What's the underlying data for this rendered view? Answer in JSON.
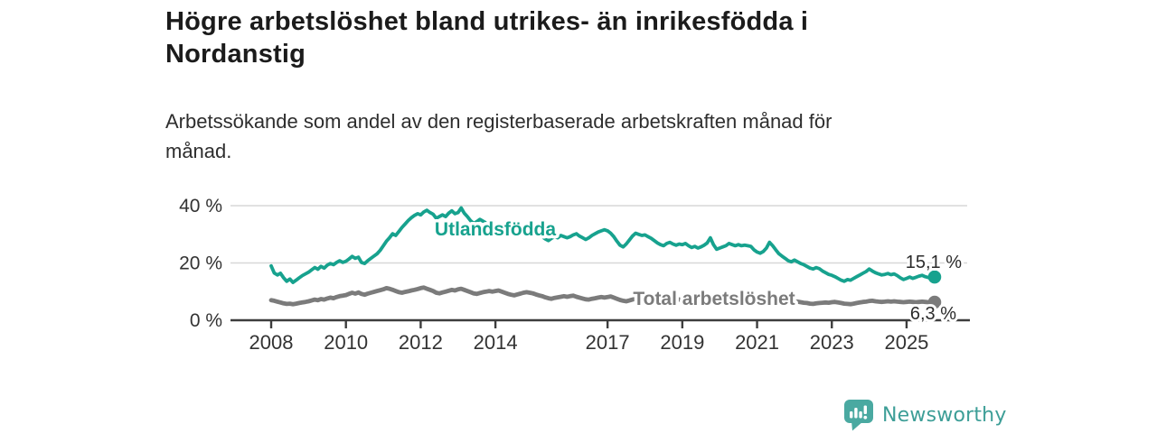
{
  "header": {
    "title": "Högre arbetslöshet bland utrikes- än inrikesfödda i\nNordanstig",
    "subtitle": "Arbetssökande som andel av den registerbaserade arbetskraften månad för\nmånad."
  },
  "footer": {
    "brand": "Newsworthy"
  },
  "colors": {
    "accent_teal": "#17a28e",
    "series_gray": "#7b7b7b",
    "axis": "#3d3d3d",
    "gridline": "#d7d7d7",
    "tick_text": "#333333",
    "value_label_text": "#2b2b2b",
    "logo_teal": "#4aa9a1",
    "logo_text_teal": "#3d9e97"
  },
  "chart_data": {
    "type": "line",
    "title": "Högre arbetslöshet bland utrikes- än inrikesfödda i Nordanstig",
    "subtitle": "Arbetssökande som andel av den registerbaserade arbetskraften månad för månad.",
    "x_unit": "month",
    "x_start_year": 2008,
    "x_interval_months": 1,
    "y_unit": "%",
    "ylim": [
      0,
      42
    ],
    "y_ticks": [
      0,
      20,
      40
    ],
    "y_tick_suffix": " %",
    "x_ticks": [
      2008,
      2010,
      2012,
      2014,
      2017,
      2019,
      2021,
      2023,
      2025
    ],
    "grid": "horizontal",
    "legend_position": "inline-labels",
    "series": [
      {
        "name": "Utlandsfödda",
        "color": "#17a28e",
        "end_label": "15,1 %",
        "end_value": 15.1,
        "values": [
          19.0,
          16.5,
          15.8,
          16.4,
          14.8,
          13.6,
          14.4,
          13.2,
          14.0,
          14.8,
          15.6,
          16.2,
          16.8,
          17.6,
          18.4,
          17.8,
          18.8,
          18.2,
          19.2,
          19.8,
          19.4,
          20.2,
          20.8,
          20.2,
          20.6,
          21.4,
          22.3,
          21.6,
          22.0,
          20.2,
          19.8,
          20.8,
          21.6,
          22.4,
          23.2,
          24.4,
          26.0,
          27.6,
          28.8,
          30.2,
          29.6,
          31.0,
          32.4,
          33.6,
          34.8,
          35.8,
          36.6,
          37.2,
          36.8,
          37.8,
          38.4,
          37.6,
          37.0,
          35.6,
          36.2,
          36.8,
          36.2,
          37.4,
          38.2,
          37.2,
          37.6,
          39.2,
          37.4,
          36.2,
          34.8,
          33.8,
          34.4,
          35.2,
          34.6,
          34.0,
          33.6,
          33.9,
          33.4,
          33.0,
          32.6,
          32.2,
          31.8,
          31.2,
          31.6,
          31.0,
          30.6,
          31.2,
          30.8,
          30.2,
          30.6,
          30.2,
          29.8,
          29.2,
          28.4,
          27.8,
          28.6,
          29.2,
          28.8,
          29.6,
          29.2,
          28.8,
          29.2,
          29.8,
          30.2,
          29.4,
          28.8,
          28.2,
          28.8,
          29.6,
          30.2,
          30.8,
          31.2,
          31.6,
          31.2,
          30.4,
          29.2,
          27.6,
          26.2,
          25.6,
          26.6,
          28.0,
          29.4,
          30.4,
          30.0,
          29.6,
          29.8,
          29.2,
          28.6,
          27.8,
          27.0,
          26.4,
          26.0,
          26.8,
          27.2,
          26.6,
          26.2,
          26.6,
          26.4,
          26.8,
          26.0,
          25.4,
          25.8,
          25.2,
          25.6,
          26.2,
          27.0,
          28.8,
          26.4,
          24.8,
          25.2,
          25.6,
          26.0,
          26.8,
          26.4,
          26.0,
          26.4,
          26.0,
          26.2,
          26.0,
          25.8,
          24.6,
          23.8,
          23.4,
          24.0,
          25.2,
          27.2,
          26.0,
          24.6,
          23.2,
          22.4,
          21.6,
          20.8,
          20.4,
          21.0,
          20.4,
          19.8,
          19.4,
          18.8,
          18.2,
          17.9,
          18.4,
          18.0,
          17.2,
          16.6,
          16.0,
          15.7,
          15.2,
          14.6,
          14.0,
          13.6,
          14.2,
          14.0,
          14.6,
          15.2,
          15.8,
          16.4,
          17.0,
          17.9,
          17.2,
          16.6,
          16.2,
          15.8,
          16.0,
          16.3,
          15.9,
          16.2,
          15.6,
          14.8,
          14.2,
          14.6,
          15.1,
          14.6,
          15.0,
          15.4,
          15.7,
          15.2,
          14.9,
          15.3,
          15.1
        ]
      },
      {
        "name": "Total arbetslöshet",
        "color": "#7b7b7b",
        "end_label": "6,3 %",
        "end_value": 6.3,
        "values": [
          7.0,
          6.8,
          6.5,
          6.2,
          5.9,
          5.7,
          5.8,
          5.6,
          5.8,
          6.0,
          6.2,
          6.4,
          6.6,
          6.9,
          7.2,
          7.0,
          7.4,
          7.2,
          7.6,
          7.9,
          7.7,
          8.1,
          8.4,
          8.6,
          8.8,
          9.2,
          9.6,
          9.3,
          9.7,
          9.2,
          8.9,
          9.3,
          9.6,
          9.9,
          10.2,
          10.5,
          10.8,
          11.2,
          11.0,
          10.6,
          10.2,
          9.8,
          9.6,
          9.9,
          10.1,
          10.4,
          10.6,
          10.9,
          11.2,
          11.4,
          11.0,
          10.6,
          10.2,
          9.6,
          9.4,
          9.7,
          10.0,
          10.3,
          10.6,
          10.4,
          10.8,
          11.0,
          10.6,
          10.2,
          9.8,
          9.4,
          9.2,
          9.5,
          9.8,
          10.0,
          10.2,
          10.0,
          10.2,
          10.4,
          10.0,
          9.6,
          9.2,
          8.9,
          8.7,
          9.0,
          9.3,
          9.6,
          9.8,
          9.6,
          9.4,
          9.0,
          8.7,
          8.4,
          8.0,
          7.7,
          7.5,
          7.8,
          8.0,
          8.2,
          8.4,
          8.2,
          8.4,
          8.6,
          8.2,
          7.9,
          7.6,
          7.3,
          7.2,
          7.5,
          7.7,
          7.9,
          8.1,
          7.9,
          8.1,
          8.3,
          7.9,
          7.5,
          7.1,
          6.8,
          6.6,
          6.9,
          7.2,
          7.5,
          7.7,
          7.5,
          7.7,
          7.8,
          7.5,
          7.2,
          6.9,
          6.6,
          6.5,
          6.8,
          7.0,
          7.2,
          7.4,
          7.2,
          7.4,
          7.5,
          7.2,
          6.9,
          6.7,
          6.5,
          6.4,
          6.7,
          6.9,
          7.1,
          7.3,
          7.1,
          7.3,
          7.4,
          7.6,
          8.0,
          8.2,
          8.0,
          7.8,
          7.6,
          7.4,
          7.3,
          7.2,
          7.0,
          7.2,
          7.4,
          7.2,
          7.0,
          6.9,
          6.7,
          6.5,
          6.4,
          6.3,
          6.2,
          6.1,
          6.2,
          6.4,
          6.5,
          6.3,
          6.1,
          6.0,
          5.8,
          5.7,
          5.9,
          6.0,
          6.1,
          6.2,
          6.1,
          6.3,
          6.4,
          6.2,
          6.0,
          5.8,
          5.7,
          5.6,
          5.8,
          6.0,
          6.2,
          6.4,
          6.5,
          6.7,
          6.8,
          6.6,
          6.5,
          6.4,
          6.5,
          6.6,
          6.5,
          6.6,
          6.5,
          6.4,
          6.3,
          6.4,
          6.5,
          6.4,
          6.3,
          6.4,
          6.5,
          6.4,
          6.3,
          6.4,
          6.3
        ]
      }
    ]
  }
}
